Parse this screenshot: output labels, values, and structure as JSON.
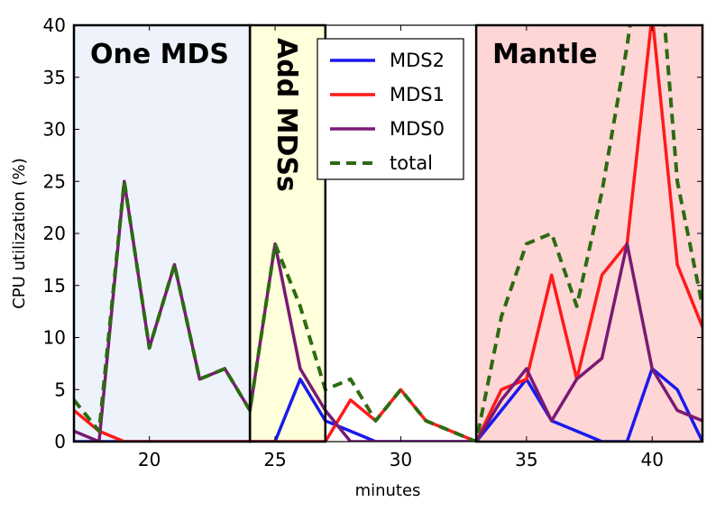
{
  "chart_data": {
    "type": "line",
    "xlabel": "minutes",
    "ylabel": "CPU utilization (%)",
    "xlim": [
      17,
      42
    ],
    "ylim": [
      0,
      40
    ],
    "xticks": [
      20,
      25,
      30,
      35,
      40
    ],
    "yticks": [
      0,
      5,
      10,
      15,
      20,
      25,
      30,
      35,
      40
    ],
    "regions": [
      {
        "label": "One MDS",
        "x0": 17,
        "x1": 24,
        "color": "#eef3fb",
        "label_vertical": false
      },
      {
        "label": "Add MDSs",
        "x0": 24,
        "x1": 27,
        "color": "#ffffdb",
        "label_vertical": true
      },
      {
        "label": "Mantle",
        "x0": 33,
        "x1": 42,
        "color": "#ffd6d6",
        "label_vertical": false
      }
    ],
    "legend_position": "top-center",
    "series": [
      {
        "name": "MDS2",
        "color": "#1a1aee",
        "dashed": false,
        "x": [
          17,
          18,
          19,
          20,
          21,
          22,
          23,
          24,
          25,
          26,
          27,
          28,
          29,
          30,
          31,
          32,
          33,
          34,
          35,
          36,
          37,
          38,
          39,
          40,
          41,
          42
        ],
        "y": [
          0,
          0,
          0,
          0,
          0,
          0,
          0,
          0,
          0,
          6,
          2,
          1,
          0,
          0,
          0,
          0,
          0,
          3,
          6,
          2,
          1,
          0,
          0,
          7,
          5,
          0
        ]
      },
      {
        "name": "MDS1",
        "color": "#ff1a1a",
        "dashed": false,
        "x": [
          17,
          18,
          19,
          20,
          21,
          22,
          23,
          24,
          25,
          26,
          27,
          28,
          29,
          30,
          31,
          32,
          33,
          34,
          35,
          36,
          37,
          38,
          39,
          40,
          41,
          42
        ],
        "y": [
          3,
          1,
          0,
          0,
          0,
          0,
          0,
          0,
          0,
          0,
          0,
          4,
          2,
          5,
          2,
          1,
          0,
          5,
          6,
          16,
          6,
          16,
          19,
          41,
          17,
          11
        ]
      },
      {
        "name": "MDS0",
        "color": "#7a1a73",
        "dashed": false,
        "x": [
          17,
          18,
          19,
          20,
          21,
          22,
          23,
          24,
          25,
          26,
          27,
          28,
          29,
          30,
          31,
          32,
          33,
          34,
          35,
          36,
          37,
          38,
          39,
          40,
          41,
          42
        ],
        "y": [
          1,
          0,
          25,
          9,
          17,
          6,
          7,
          3,
          19,
          7,
          3,
          0,
          0,
          0,
          0,
          0,
          0,
          4,
          7,
          2,
          6,
          8,
          19,
          7,
          3,
          2
        ]
      },
      {
        "name": "total",
        "color": "#2d6b12",
        "dashed": true,
        "x": [
          17,
          18,
          19,
          20,
          21,
          22,
          23,
          24,
          25,
          26,
          27,
          28,
          29,
          30,
          31,
          32,
          33,
          34,
          35,
          36,
          37,
          38,
          39,
          40,
          41,
          42
        ],
        "y": [
          4,
          1,
          25,
          9,
          17,
          6,
          7,
          3,
          19,
          13,
          5,
          6,
          2,
          5,
          2,
          1,
          0,
          12,
          19,
          20,
          13,
          24,
          38,
          55,
          25,
          13
        ]
      }
    ]
  }
}
